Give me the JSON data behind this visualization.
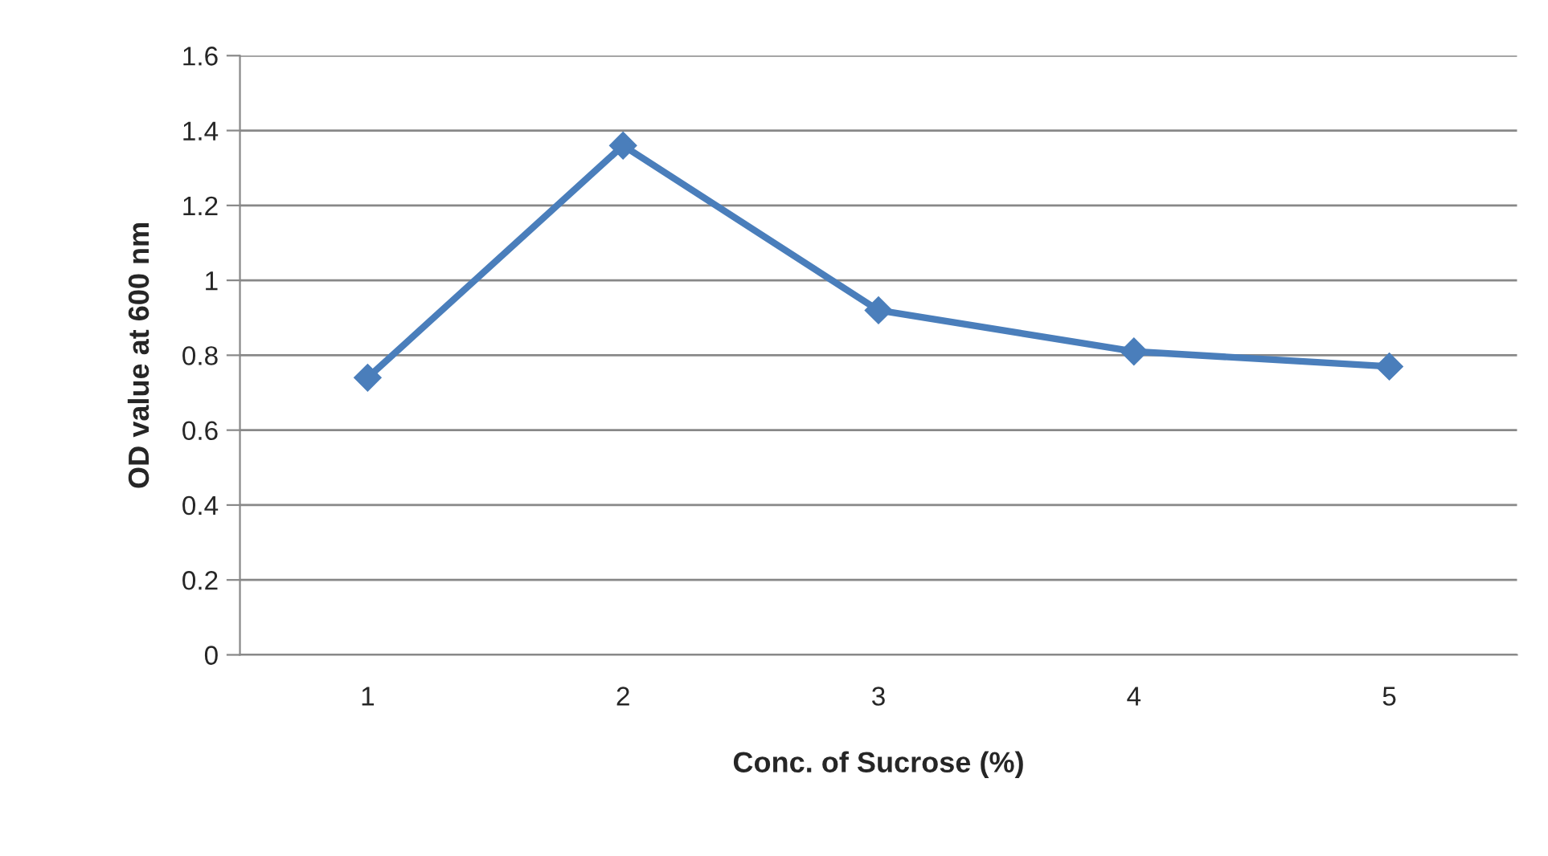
{
  "chart_data": {
    "type": "line",
    "xlabel": "Conc. of Sucrose (%)",
    "ylabel": "OD value at 600 nm",
    "categories": [
      "1",
      "2",
      "3",
      "4",
      "5"
    ],
    "series": [
      {
        "color": "#4a7ebb",
        "values": [
          0.74,
          1.36,
          0.92,
          0.81,
          0.77
        ]
      }
    ],
    "ylim": [
      0,
      1.6
    ],
    "yticks": [
      0,
      0.2,
      0.4,
      0.6,
      0.8,
      1,
      1.2,
      1.4,
      1.6
    ],
    "grid": "y",
    "marker": "diamond",
    "line_style": "solid"
  }
}
